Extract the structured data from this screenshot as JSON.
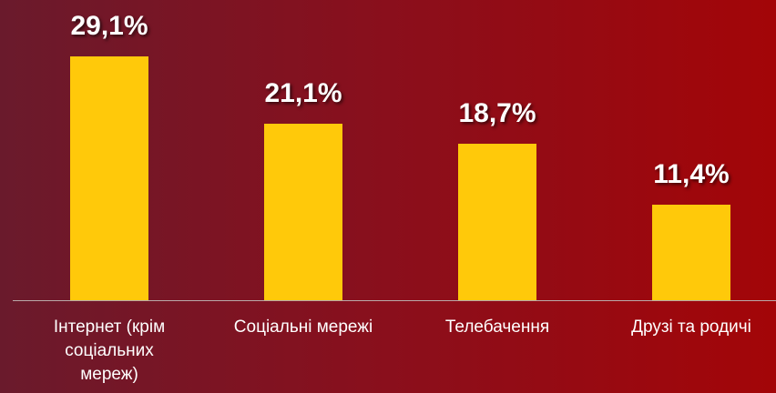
{
  "chart_data": {
    "type": "bar",
    "categories": [
      "Інтернет (крім соціальних мереж)",
      "Соціальні мережі",
      "Телебачення",
      "Друзі та родичі"
    ],
    "values": [
      29.1,
      21.1,
      18.7,
      11.4
    ],
    "value_labels": [
      "29,1%",
      "21,1%",
      "18,7%",
      "11,4%"
    ],
    "color": "#ffc90a"
  }
}
